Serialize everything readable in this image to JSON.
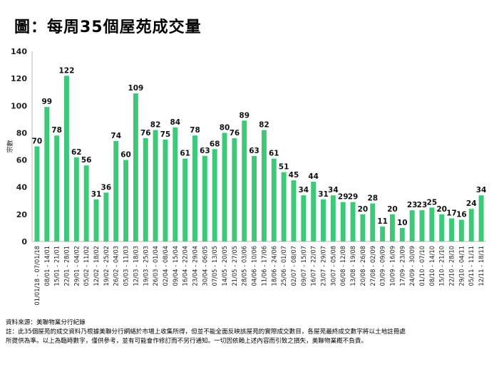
{
  "title": "圖：每周35個屋苑成交量",
  "footer": {
    "source": "資料來源：美聯物業分行紀錄",
    "note_line1": "註：此35個屋苑的成交資料乃根據美聯分行網絡於市場上收集所得，但並不能全面反映該屋苑的實際成交數目，各屋苑最終成交數字將以土地註冊處",
    "note_line2": "所提供為準。以上為臨時數字，僅供參考，並有可能會作修訂而不另行通知。一切因依賴上述內容而引致之損失，美聯物業概不負責。"
  },
  "chart_data": {
    "type": "bar",
    "title": "圖：每周35個屋苑成交量",
    "xlabel": "",
    "ylabel": "宗數",
    "ylim": [
      0,
      140
    ],
    "yticks": [
      0,
      20,
      40,
      60,
      80,
      100,
      120,
      140
    ],
    "grid": false,
    "bar_color": "#3ec97a",
    "categories": [
      "01/01/18 - 07/01/18",
      "08/01 - 14/01",
      "15/01 - 21/01",
      "22/01 - 28/01",
      "29/01 - 04/02",
      "05/02 - 11/02",
      "12/02 - 18/02",
      "19/02 - 25/02",
      "26/02 - 04/03",
      "05/03 - 11/03",
      "12/03 - 18/03",
      "19/03 - 25/03",
      "26/03 - 01/04",
      "02/04 - 08/04",
      "09/04 - 15/04",
      "16/04 - 22/04",
      "23/04 - 29/04",
      "30/04 - 06/05",
      "07/05 - 13/05",
      "14/05 - 20/05",
      "21/05 - 27/05",
      "28/05 - 03/06",
      "04/06 - 10/06",
      "11/06 - 17/06",
      "18/06 - 24/06",
      "25/06 - 01/07",
      "02/07 - 08/07",
      "09/07 - 15/07",
      "16/07 - 22/07",
      "23/07 - 29/07",
      "30/07 - 05/08",
      "06/08 - 12/08",
      "13/08 - 19/08",
      "20/08 - 26/08",
      "27/08 - 02/09",
      "03/09 - 09/09",
      "10/09 - 16/09",
      "17/09 - 23/09",
      "24/09 - 30/09",
      "01/10 - 07/10",
      "08/10 - 14/10",
      "15/10 - 21/10",
      "22/10 - 28/10",
      "29/10 - 04/11",
      "05/11 - 11/11",
      "12/11 - 18/11"
    ],
    "values": [
      70,
      99,
      78,
      122,
      62,
      56,
      31,
      36,
      74,
      60,
      109,
      76,
      82,
      75,
      84,
      61,
      78,
      63,
      68,
      80,
      76,
      89,
      63,
      82,
      61,
      51,
      45,
      34,
      44,
      31,
      34,
      29,
      29,
      20,
      28,
      11,
      20,
      10,
      23,
      23,
      25,
      20,
      17,
      16,
      24,
      34
    ]
  }
}
